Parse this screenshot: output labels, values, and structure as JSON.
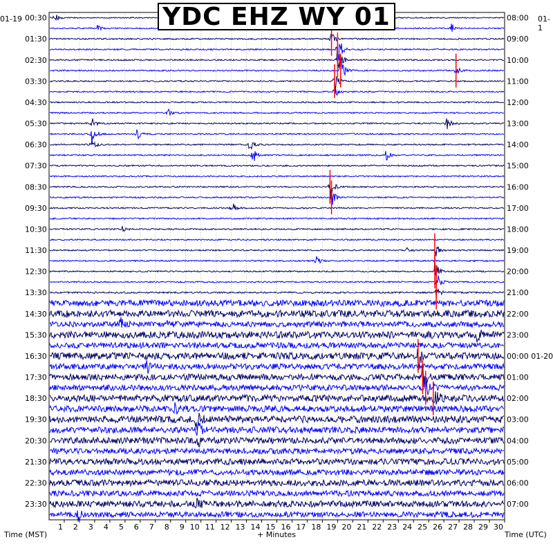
{
  "title": "YDC EHZ WY 01",
  "left_date": "01-19",
  "right_date": "01-1",
  "x_axis_label": "+ Minutes",
  "left_axis_label": "Time (MST)",
  "right_axis_label": "Time (UTC)",
  "colors": {
    "navy": "#000066",
    "blue": "#0000ff",
    "event": "#ff0000",
    "grid": "#9a9a9a"
  },
  "chart_data": {
    "type": "helicorder",
    "title": "YDC EHZ WY 01",
    "xlabel": "+ Minutes",
    "xlim": [
      0,
      30
    ],
    "x_ticks": [
      1,
      2,
      3,
      4,
      5,
      6,
      7,
      8,
      9,
      10,
      11,
      12,
      13,
      14,
      15,
      16,
      17,
      18,
      19,
      20,
      21,
      22,
      23,
      24,
      25,
      26,
      27,
      28,
      29,
      30
    ],
    "left_ticks": [
      "00:30",
      "01:30",
      "02:30",
      "03:30",
      "04:30",
      "05:30",
      "06:30",
      "07:30",
      "08:30",
      "09:30",
      "10:30",
      "11:30",
      "12:30",
      "13:30",
      "14:30",
      "15:30",
      "16:30",
      "17:30",
      "18:30",
      "19:30",
      "20:30",
      "21:30",
      "22:30",
      "23:30"
    ],
    "right_ticks": [
      "08:00",
      "09:00",
      "10:00",
      "11:00",
      "12:00",
      "13:00",
      "14:00",
      "15:00",
      "16:00",
      "17:00",
      "18:00",
      "19:00",
      "20:00",
      "21:00",
      "22:00",
      "23:00",
      "00:00 01-20",
      "01:00",
      "02:00",
      "03:00",
      "04:00",
      "05:00",
      "06:00",
      "07:00"
    ],
    "trace_count": 48,
    "trace_minutes": 30,
    "noise_levels": [
      0.8,
      0.9,
      1,
      1,
      1,
      1,
      1,
      1,
      1,
      1,
      1,
      1,
      1,
      1,
      1,
      1,
      1,
      1,
      1,
      1,
      1,
      1,
      1,
      1,
      1,
      1,
      1.2,
      4.5,
      5,
      4,
      5,
      4,
      5,
      4,
      4.5,
      4,
      5,
      4.5,
      5,
      4.5,
      4.5,
      4,
      4.5,
      4,
      4.5,
      4,
      4.5,
      4
    ],
    "events": [
      {
        "trace": 0,
        "minute": 0.35,
        "amp": 8
      },
      {
        "trace": 1,
        "minute": 3.2,
        "amp": 6
      },
      {
        "trace": 1,
        "minute": 26.5,
        "amp": 8
      },
      {
        "trace": 2,
        "minute": 18.6,
        "amp": 14,
        "red": true
      },
      {
        "trace": 3,
        "minute": 19.0,
        "amp": 28,
        "red": true
      },
      {
        "trace": 4,
        "minute": 19.0,
        "amp": 30,
        "red": true
      },
      {
        "trace": 5,
        "minute": 19.2,
        "amp": 28,
        "red": true
      },
      {
        "trace": 6,
        "minute": 18.8,
        "amp": 18,
        "red": true
      },
      {
        "trace": 7,
        "minute": 18.8,
        "amp": 10
      },
      {
        "trace": 5,
        "minute": 26.8,
        "amp": 8,
        "red": true
      },
      {
        "trace": 9,
        "minute": 7.8,
        "amp": 8
      },
      {
        "trace": 10,
        "minute": 2.8,
        "amp": 10
      },
      {
        "trace": 10,
        "minute": 26.2,
        "amp": 10
      },
      {
        "trace": 11,
        "minute": 2.8,
        "amp": 16
      },
      {
        "trace": 11,
        "minute": 5.8,
        "amp": 8
      },
      {
        "trace": 12,
        "minute": 2.8,
        "amp": 10
      },
      {
        "trace": 12,
        "minute": 13.2,
        "amp": 12
      },
      {
        "trace": 13,
        "minute": 13.4,
        "amp": 14
      },
      {
        "trace": 13,
        "minute": 22.2,
        "amp": 12
      },
      {
        "trace": 16,
        "minute": 18.5,
        "amp": 20,
        "red": true
      },
      {
        "trace": 17,
        "minute": 18.6,
        "amp": 14,
        "red": true
      },
      {
        "trace": 18,
        "minute": 12.0,
        "amp": 12
      },
      {
        "trace": 20,
        "minute": 4.8,
        "amp": 5
      },
      {
        "trace": 22,
        "minute": 23.6,
        "amp": 7
      },
      {
        "trace": 22,
        "minute": 25.4,
        "amp": 14,
        "red": true
      },
      {
        "trace": 23,
        "minute": 17.6,
        "amp": 8
      },
      {
        "trace": 24,
        "minute": 25.4,
        "amp": 18,
        "red": true
      },
      {
        "trace": 25,
        "minute": 25.5,
        "amp": 18,
        "red": true
      },
      {
        "trace": 26,
        "minute": 25.5,
        "amp": 16,
        "red": true
      },
      {
        "trace": 29,
        "minute": 4.7,
        "amp": 12
      },
      {
        "trace": 29,
        "minute": 7.8,
        "amp": 8
      },
      {
        "trace": 30,
        "minute": 28.2,
        "amp": 9
      },
      {
        "trace": 32,
        "minute": 24.3,
        "amp": 18,
        "red": true
      },
      {
        "trace": 33,
        "minute": 6.4,
        "amp": 12
      },
      {
        "trace": 34,
        "minute": 24.6,
        "amp": 20,
        "red": true
      },
      {
        "trace": 35,
        "minute": 24.8,
        "amp": 22,
        "red": true
      },
      {
        "trace": 36,
        "minute": 25.3,
        "amp": 20,
        "red": true
      },
      {
        "trace": 37,
        "minute": 8.3,
        "amp": 8
      },
      {
        "trace": 38,
        "minute": 9.7,
        "amp": 16
      },
      {
        "trace": 39,
        "minute": 9.8,
        "amp": 12
      },
      {
        "trace": 40,
        "minute": 9.8,
        "amp": 8
      },
      {
        "trace": 46,
        "minute": 9.7,
        "amp": 8
      },
      {
        "trace": 47,
        "minute": 1.9,
        "amp": 8
      }
    ]
  }
}
